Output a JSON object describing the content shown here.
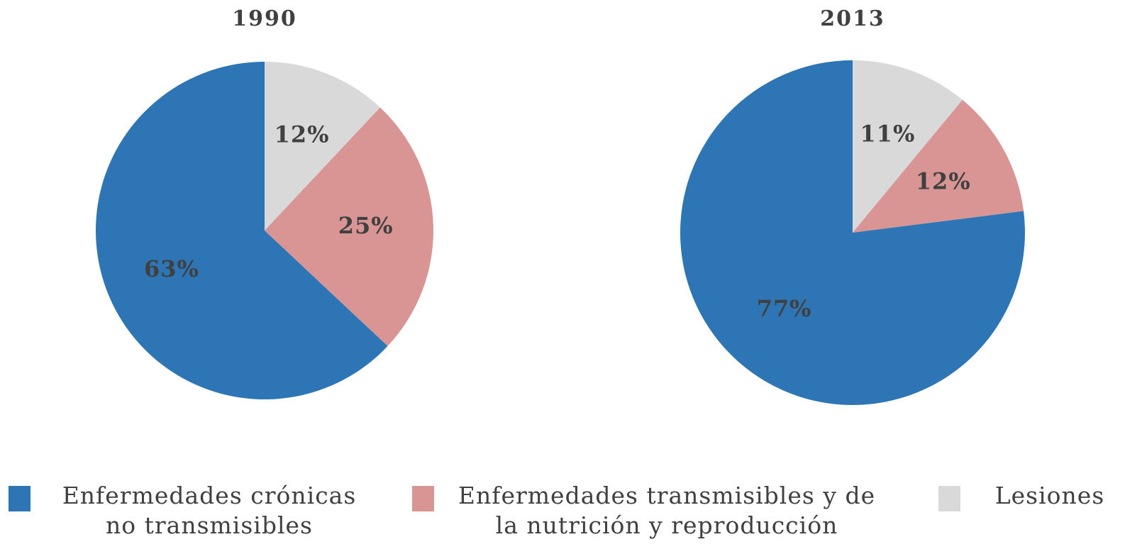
{
  "chart_data": [
    {
      "type": "pie",
      "title": "1990",
      "categories": [
        "Enfermedades crónicas no transmisibles",
        "Enfermedades transmisibles y de la nutrición y reproducción",
        "Lesiones"
      ],
      "values": [
        63,
        25,
        12
      ],
      "value_labels": [
        "63%",
        "25%",
        "12%"
      ],
      "colors": [
        "#2e75b6",
        "#d99594",
        "#d9d9d9"
      ]
    },
    {
      "type": "pie",
      "title": "2013",
      "categories": [
        "Enfermedades crónicas no transmisibles",
        "Enfermedades transmisibles y de la nutrición y reproducción",
        "Lesiones"
      ],
      "values": [
        77,
        12,
        11
      ],
      "value_labels": [
        "77%",
        "12%",
        "11%"
      ],
      "colors": [
        "#2e75b6",
        "#d99594",
        "#d9d9d9"
      ]
    }
  ]
}
